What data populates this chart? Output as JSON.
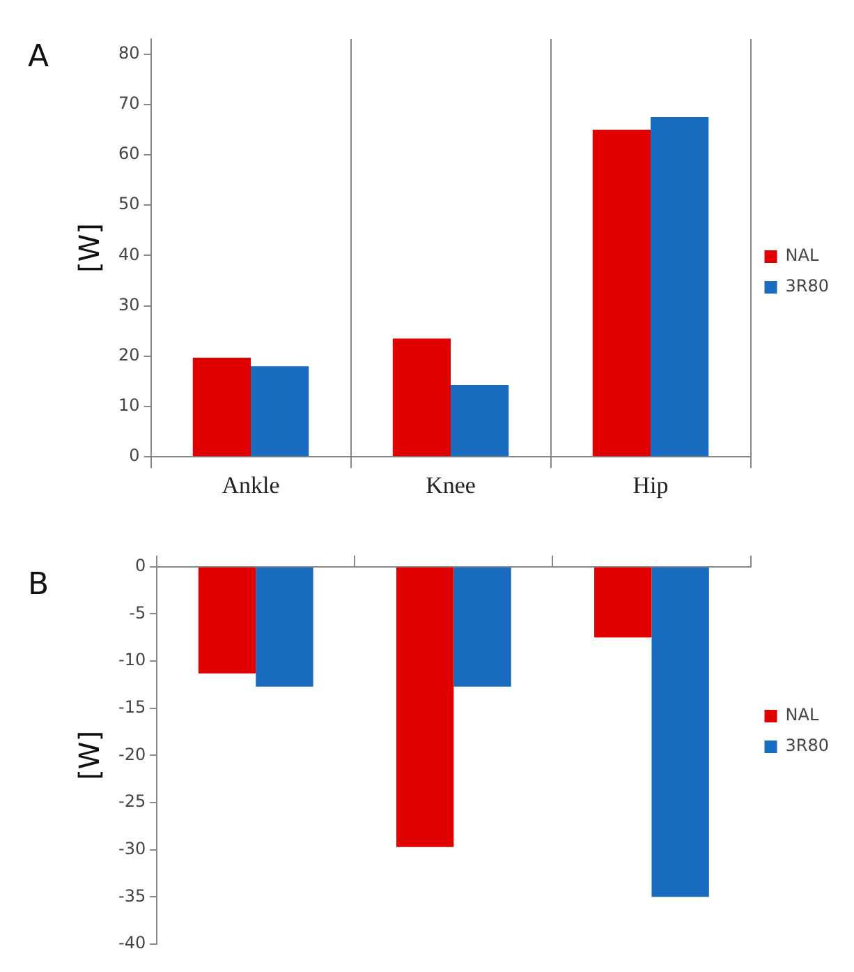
{
  "chart_data": [
    {
      "type": "bar",
      "title": "A",
      "ylabel": "[W]",
      "categories": [
        "Ankle",
        "Knee",
        "Hip"
      ],
      "series": [
        {
          "name": "NAL",
          "color": "#e00000",
          "values": [
            19.7,
            23.5,
            65
          ]
        },
        {
          "name": "3R80",
          "color": "#1a6cc0",
          "values": [
            18,
            14.3,
            67.5
          ]
        }
      ],
      "ylim": [
        0,
        83
      ],
      "yticks": [
        0,
        10,
        20,
        30,
        40,
        50,
        60,
        70,
        80
      ],
      "grid": "x",
      "legend": "right"
    },
    {
      "type": "bar",
      "title": "B",
      "ylabel": "[W]",
      "categories": [
        null,
        null,
        null
      ],
      "series": [
        {
          "name": "NAL",
          "color": "#e00000",
          "values": [
            -11.3,
            -29.7,
            -7.5
          ]
        },
        {
          "name": "3R80",
          "color": "#1a6cc0",
          "values": [
            -12.7,
            -12.7,
            -35
          ]
        }
      ],
      "ylim": [
        -40,
        0
      ],
      "yticks": [
        -40,
        -35,
        -30,
        -25,
        -20,
        -15,
        -10,
        -5,
        0
      ],
      "grid": false,
      "legend": "right"
    }
  ]
}
